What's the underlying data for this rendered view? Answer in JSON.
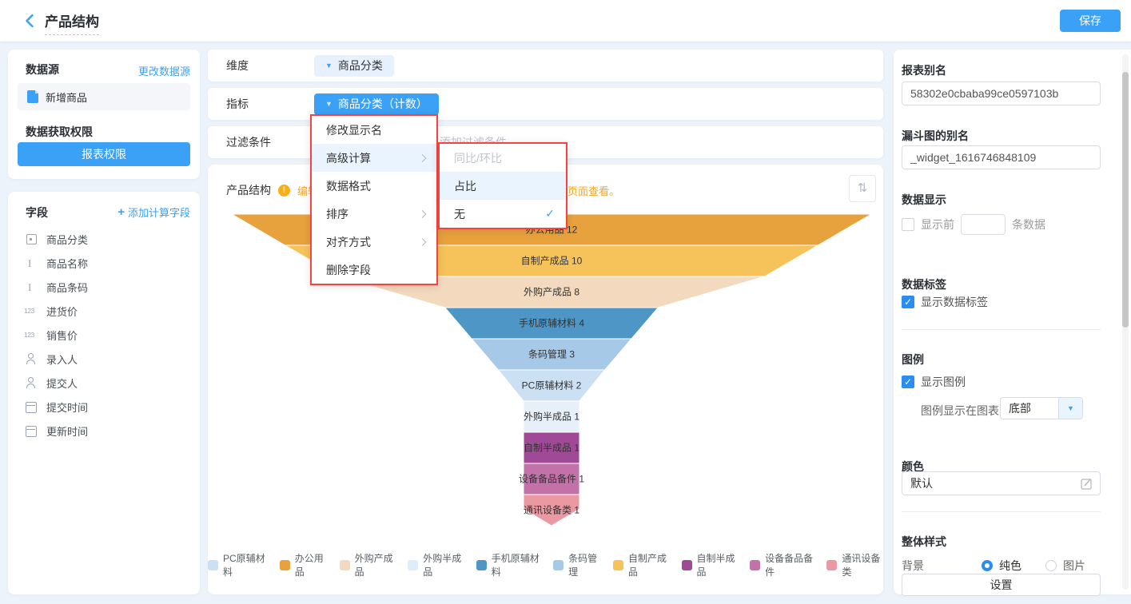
{
  "header": {
    "title": "产品结构",
    "save_label": "保存"
  },
  "left_panel": {
    "datasource_card": {
      "title": "数据源",
      "change_link": "更改数据源",
      "datasource_item": "新增商品",
      "permission_title": "数据获取权限",
      "permission_button": "报表权限"
    },
    "fields_card": {
      "title": "字段",
      "add_calc_plus": "+",
      "add_calc_link": "添加计算字段",
      "fields": [
        {
          "icon": "select",
          "label": "商品分类"
        },
        {
          "icon": "text",
          "label": "商品名称"
        },
        {
          "icon": "text",
          "label": "商品条码"
        },
        {
          "icon": "number",
          "label": "进货价"
        },
        {
          "icon": "number",
          "label": "销售价"
        },
        {
          "icon": "person",
          "label": "录入人"
        },
        {
          "icon": "person",
          "label": "提交人"
        },
        {
          "icon": "calendar",
          "label": "提交时间"
        },
        {
          "icon": "calendar",
          "label": "更新时间"
        }
      ]
    }
  },
  "config": {
    "dimension_label": "维度",
    "dimension_tag": "商品分类",
    "metric_label": "指标",
    "metric_tag": "商品分类（计数）",
    "caret": "▼",
    "filter_label": "过滤条件",
    "filter_placeholder": "添加过滤条件"
  },
  "context_menu": {
    "items": [
      {
        "label": "修改显示名",
        "submenu": false,
        "active": false
      },
      {
        "label": "高级计算",
        "submenu": true,
        "active": true
      },
      {
        "label": "数据格式",
        "submenu": false,
        "active": false
      },
      {
        "label": "排序",
        "submenu": true,
        "active": false
      },
      {
        "label": "对齐方式",
        "submenu": true,
        "active": false
      },
      {
        "label": "删除字段",
        "submenu": false,
        "active": false
      }
    ],
    "submenu": [
      {
        "label": "同比/环比",
        "disabled": true,
        "active": false,
        "checked": false
      },
      {
        "label": "占比",
        "disabled": false,
        "active": true,
        "checked": false
      },
      {
        "label": "无",
        "disabled": false,
        "active": false,
        "checked": true
      }
    ],
    "check_glyph": "✓"
  },
  "chart_card": {
    "title": "产品结构",
    "warning_glyph": "!",
    "notice": "编辑状态下图表仅展示部分数据，如需查看全部数据请访问页面查看。",
    "sort_icon_glyph": "⇅"
  },
  "chart_data": {
    "type": "funnel",
    "title": "产品结构",
    "categories": [
      "办公用品",
      "自制产成品",
      "外购产成品",
      "手机原辅材料",
      "条码管理",
      "PC原辅材料",
      "外购半成品",
      "自制半成品",
      "设备备品备件",
      "通讯设备类"
    ],
    "values": [
      12,
      10,
      8,
      4,
      3,
      2,
      1,
      1,
      1,
      1
    ],
    "colors": [
      "#e8a23d",
      "#f6c35a",
      "#f3d9bd",
      "#4e96c6",
      "#a6c9e8",
      "#cbe0f3",
      "#e7eff9",
      "#a04a97",
      "#c272a9",
      "#ea98a2"
    ],
    "label_format": "name value",
    "legend_position": "bottom",
    "legend": [
      {
        "label": "PC原辅材料",
        "color": "#cbe0f3"
      },
      {
        "label": "办公用品",
        "color": "#e8a23d"
      },
      {
        "label": "外购产成品",
        "color": "#f3d9bd"
      },
      {
        "label": "外购半成品",
        "color": "#e0ecf8"
      },
      {
        "label": "手机原辅材料",
        "color": "#4e96c6"
      },
      {
        "label": "条码管理",
        "color": "#a6c9e8"
      },
      {
        "label": "自制产成品",
        "color": "#f6c35a"
      },
      {
        "label": "自制半成品",
        "color": "#a04a97"
      },
      {
        "label": "设备备品备件",
        "color": "#c272a9"
      },
      {
        "label": "通讯设备类",
        "color": "#ea98a2"
      }
    ]
  },
  "right_panel": {
    "report_alias_label": "报表别名",
    "report_alias_value": "58302e0cbaba99ce0597103b",
    "widget_alias_label": "漏斗图的别名",
    "widget_alias_value": "_widget_1616746848109",
    "data_display_label": "数据显示",
    "show_first_label": "显示前",
    "rows_suffix_label": "条数据",
    "data_label_section": "数据标签",
    "show_data_label": "显示数据标签",
    "legend_section": "图例",
    "show_legend": "显示图例",
    "legend_position_label": "图例显示在图表",
    "legend_position_value": "底部",
    "legend_caret": "▼",
    "color_section": "颜色",
    "color_value": "默认",
    "style_section": "整体样式",
    "background_label": "背景",
    "bg_solid": "纯色",
    "bg_image": "图片",
    "settings_button": "设置"
  }
}
